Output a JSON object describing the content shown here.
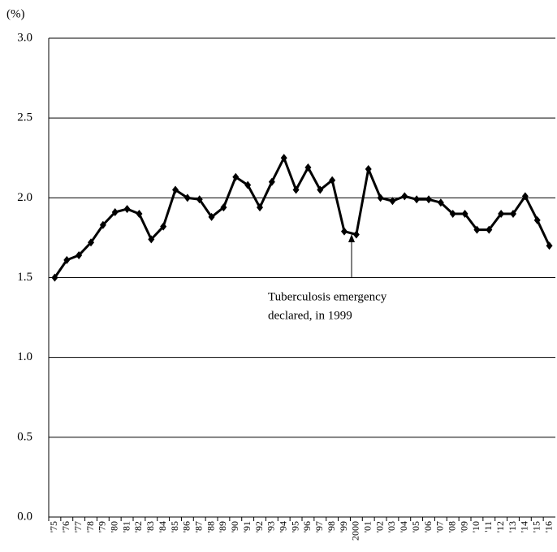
{
  "chart_data": {
    "type": "line",
    "y_label": "(%)",
    "annotation": [
      "Tuberculosis emergency",
      "declared, in 1999"
    ],
    "categories": [
      "'75",
      "'76",
      "'77",
      "'78",
      "'79",
      "'80",
      "'81",
      "'82",
      "'83",
      "'84",
      "'85",
      "'86",
      "'87",
      "'88",
      "'89",
      "'90",
      "'91",
      "'92",
      "'93",
      "'94",
      "'95",
      "'96",
      "'97",
      "'98",
      "'99",
      "2000",
      "'01",
      "'02",
      "'03",
      "'04",
      "'05",
      "'06",
      "'07",
      "'08",
      "'09",
      "'10",
      "'11",
      "'12",
      "'13",
      "'14",
      "'15",
      "'16"
    ],
    "values": [
      1.5,
      1.61,
      1.64,
      1.72,
      1.83,
      1.91,
      1.93,
      1.9,
      1.74,
      1.82,
      2.05,
      2.0,
      1.99,
      1.88,
      1.94,
      2.13,
      2.08,
      1.94,
      2.1,
      2.25,
      2.05,
      2.19,
      2.05,
      2.11,
      1.79,
      1.77,
      2.18,
      2.0,
      1.98,
      2.01,
      1.99,
      1.99,
      1.97,
      1.9,
      1.9,
      1.8,
      1.8,
      1.9,
      1.9,
      2.01,
      1.86,
      1.7
    ],
    "color": "#000000",
    "ylim": [
      0,
      3
    ],
    "yticks": [
      {
        "value": 0,
        "label": "0.0"
      },
      {
        "value": 0.5,
        "label": "0.5"
      },
      {
        "value": 1,
        "label": "1.0"
      },
      {
        "value": 1.5,
        "label": "1.5"
      },
      {
        "value": 2,
        "label": "2.0"
      },
      {
        "value": 2.5,
        "label": "2.5"
      },
      {
        "value": 3,
        "label": "3.0"
      }
    ],
    "grid": true
  }
}
